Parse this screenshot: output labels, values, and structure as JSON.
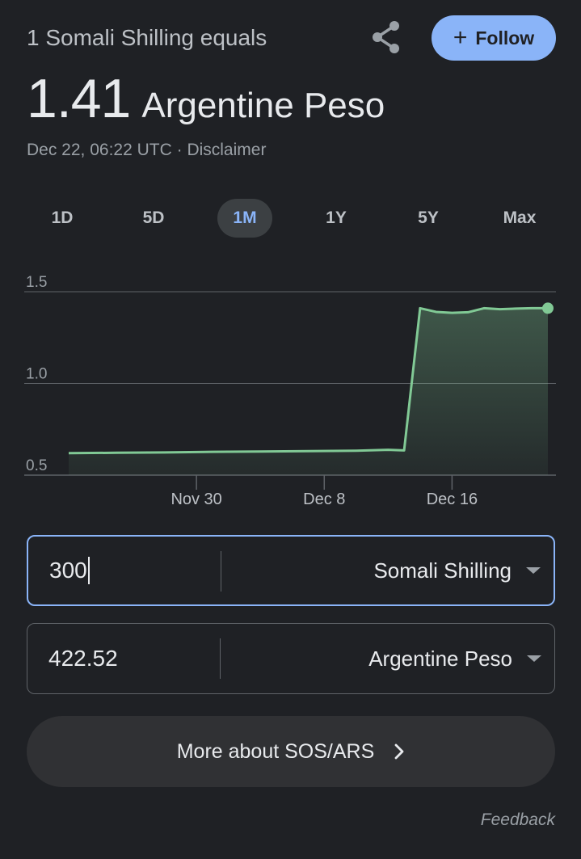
{
  "header": {
    "subtitle": "1 Somali Shilling equals",
    "rate_value": "1.41",
    "rate_currency": "Argentine Peso",
    "timestamp": "Dec 22, 06:22 UTC",
    "separator": " · ",
    "disclaimer": "Disclaimer",
    "follow_label": "Follow",
    "share_icon": "share-icon"
  },
  "range_tabs": [
    {
      "label": "1D",
      "active": false
    },
    {
      "label": "5D",
      "active": false
    },
    {
      "label": "1M",
      "active": true
    },
    {
      "label": "1Y",
      "active": false
    },
    {
      "label": "5Y",
      "active": false
    },
    {
      "label": "Max",
      "active": false
    }
  ],
  "colors": {
    "line": "#81c995",
    "accent": "#8ab4f8",
    "background": "#1f2125",
    "grid": "#5f6368"
  },
  "chart_data": {
    "type": "area",
    "x_start": "2023-11-22",
    "x_end": "2023-12-22",
    "x_tick_labels": [
      {
        "date": "2023-11-30",
        "label": "Nov 30"
      },
      {
        "date": "2023-12-08",
        "label": "Dec 8"
      },
      {
        "date": "2023-12-16",
        "label": "Dec 16"
      }
    ],
    "y_tick_labels": [
      "0.5",
      "1.0",
      "1.5"
    ],
    "y_ticks": [
      0.5,
      1.0,
      1.5
    ],
    "ylim": [
      0.5,
      1.5
    ],
    "grid": true,
    "series": [
      {
        "x": [
          "2023-11-22",
          "2023-11-25",
          "2023-11-28",
          "2023-12-01",
          "2023-12-04",
          "2023-12-07",
          "2023-12-10",
          "2023-12-12",
          "2023-12-13",
          "2023-12-14",
          "2023-12-15",
          "2023-12-16",
          "2023-12-17",
          "2023-12-18",
          "2023-12-19",
          "2023-12-20",
          "2023-12-21",
          "2023-12-22"
        ],
        "y": [
          0.62,
          0.622,
          0.624,
          0.627,
          0.629,
          0.631,
          0.633,
          0.638,
          0.635,
          1.41,
          1.39,
          1.385,
          1.388,
          1.41,
          1.405,
          1.408,
          1.41,
          1.41
        ]
      }
    ]
  },
  "converter": {
    "from": {
      "amount": "300",
      "currency": "Somali Shilling"
    },
    "to": {
      "amount": "422.52",
      "currency": "Argentine Peso"
    }
  },
  "more_button": {
    "label": "More about SOS/ARS"
  },
  "feedback_label": "Feedback"
}
